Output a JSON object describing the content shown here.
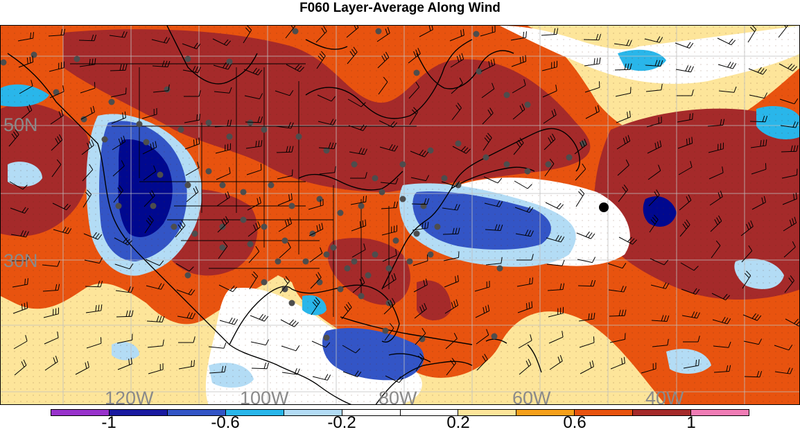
{
  "title": "F060 Layer-Average Along Wind",
  "map": {
    "lat_labels": [
      "50N",
      "30N"
    ],
    "lon_labels": [
      "120W",
      "100W",
      "80W",
      "60W",
      "40W"
    ],
    "shading_colors": {
      "strong_positive": "#a52a2a",
      "positive": "#e8530f",
      "moderate_positive": "#f6a01b",
      "weak_positive": "#fde59a",
      "neutral": "#ffffff",
      "weak_negative": "#b3dcf5",
      "moderate_negative": "#29b6ea",
      "negative": "#3355c6",
      "strong_negative": "#00088f"
    },
    "station_marker_color": "#4d4d4d",
    "highlight_marker_color": "#000000"
  },
  "colorbar": {
    "colors": [
      "#9933cc",
      "#1a1aa0",
      "#3355c6",
      "#29b6ea",
      "#b3dcf5",
      "#ffffff",
      "#ffffff",
      "#fde59a",
      "#f6a01b",
      "#e8530f",
      "#a52a2a",
      "#f07cb5"
    ],
    "tick_labels": [
      "-1",
      "-0.6",
      "-0.2",
      "0.2",
      "0.6",
      "1"
    ]
  }
}
